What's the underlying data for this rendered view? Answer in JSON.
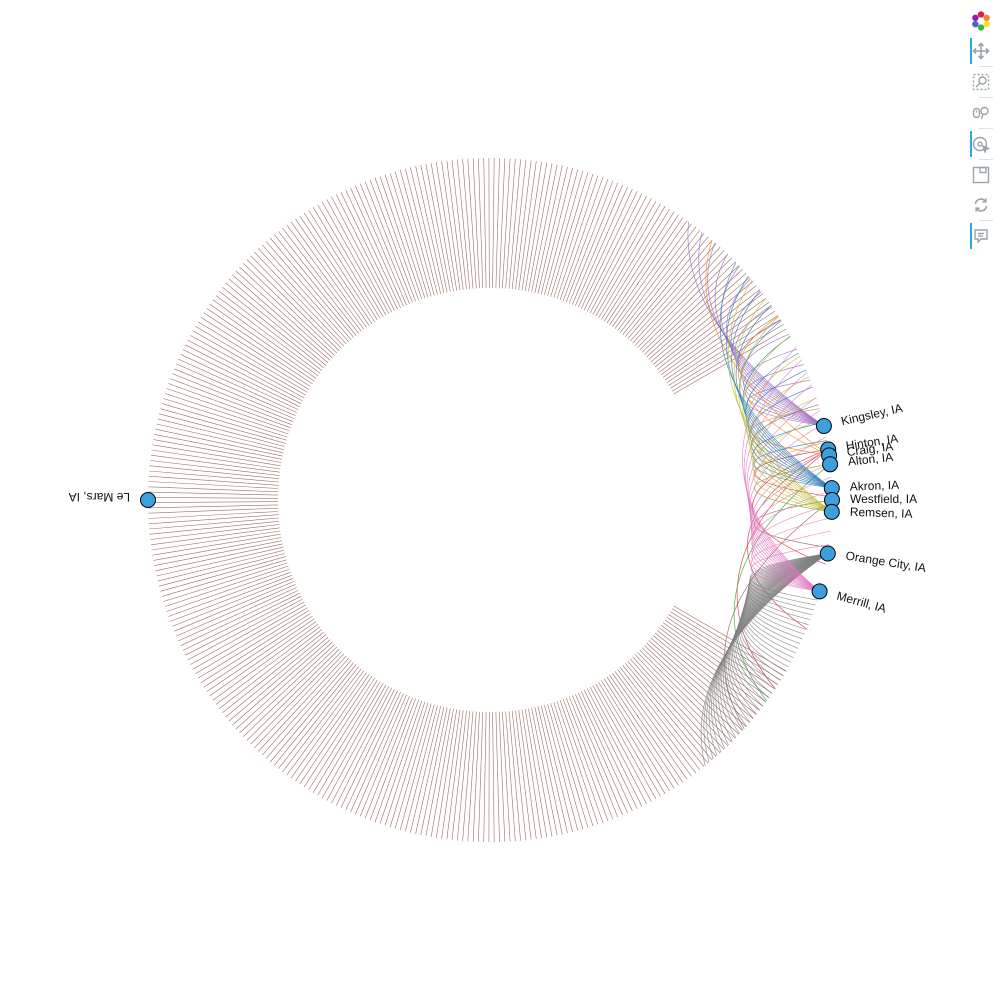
{
  "chart_data": {
    "type": "chord",
    "hub": {
      "label": "Le Mars, IA"
    },
    "nodes": [
      {
        "label": "Kingsley, IA",
        "color": "#9467bd",
        "links": 13
      },
      {
        "label": "Hinton, IA",
        "color": "#d62728",
        "links": 4
      },
      {
        "label": "Craig, IA",
        "color": "#ff7f0e",
        "links": 3
      },
      {
        "label": "Alton, IA",
        "color": "#2ca02c",
        "links": 2
      },
      {
        "label": "Akron, IA",
        "color": "#1f77b4",
        "links": 12
      },
      {
        "label": "Westfield, IA",
        "color": "#8c564b",
        "links": 2
      },
      {
        "label": "Remsen, IA",
        "color": "#bcbd22",
        "links": 10
      },
      {
        "label": "Orange City, IA",
        "color": "#7f7f7f",
        "links": 40
      },
      {
        "label": "Merrill, IA",
        "color": "#e377c2",
        "links": 16
      }
    ],
    "colors": {
      "hub_edges": "#8c564b",
      "node_fill": "#3ca0dc",
      "node_stroke": "#000000"
    }
  },
  "toolbar": {
    "items": [
      {
        "name": "bokeh-logo",
        "icon": "bokeh-logo-icon",
        "active": false
      },
      {
        "name": "pan-tool",
        "icon": "move-arrows-icon",
        "active": true
      },
      {
        "name": "box-zoom-tool",
        "icon": "box-zoom-icon",
        "active": false
      },
      {
        "name": "wheel-zoom-tool",
        "icon": "wheel-zoom-icon",
        "active": false
      },
      {
        "name": "tap-tool",
        "icon": "tap-icon",
        "active": true
      },
      {
        "name": "save-tool",
        "icon": "save-icon",
        "active": false
      },
      {
        "name": "reset-tool",
        "icon": "reset-icon",
        "active": false
      },
      {
        "name": "hover-tool",
        "icon": "hover-icon",
        "active": true
      }
    ]
  }
}
